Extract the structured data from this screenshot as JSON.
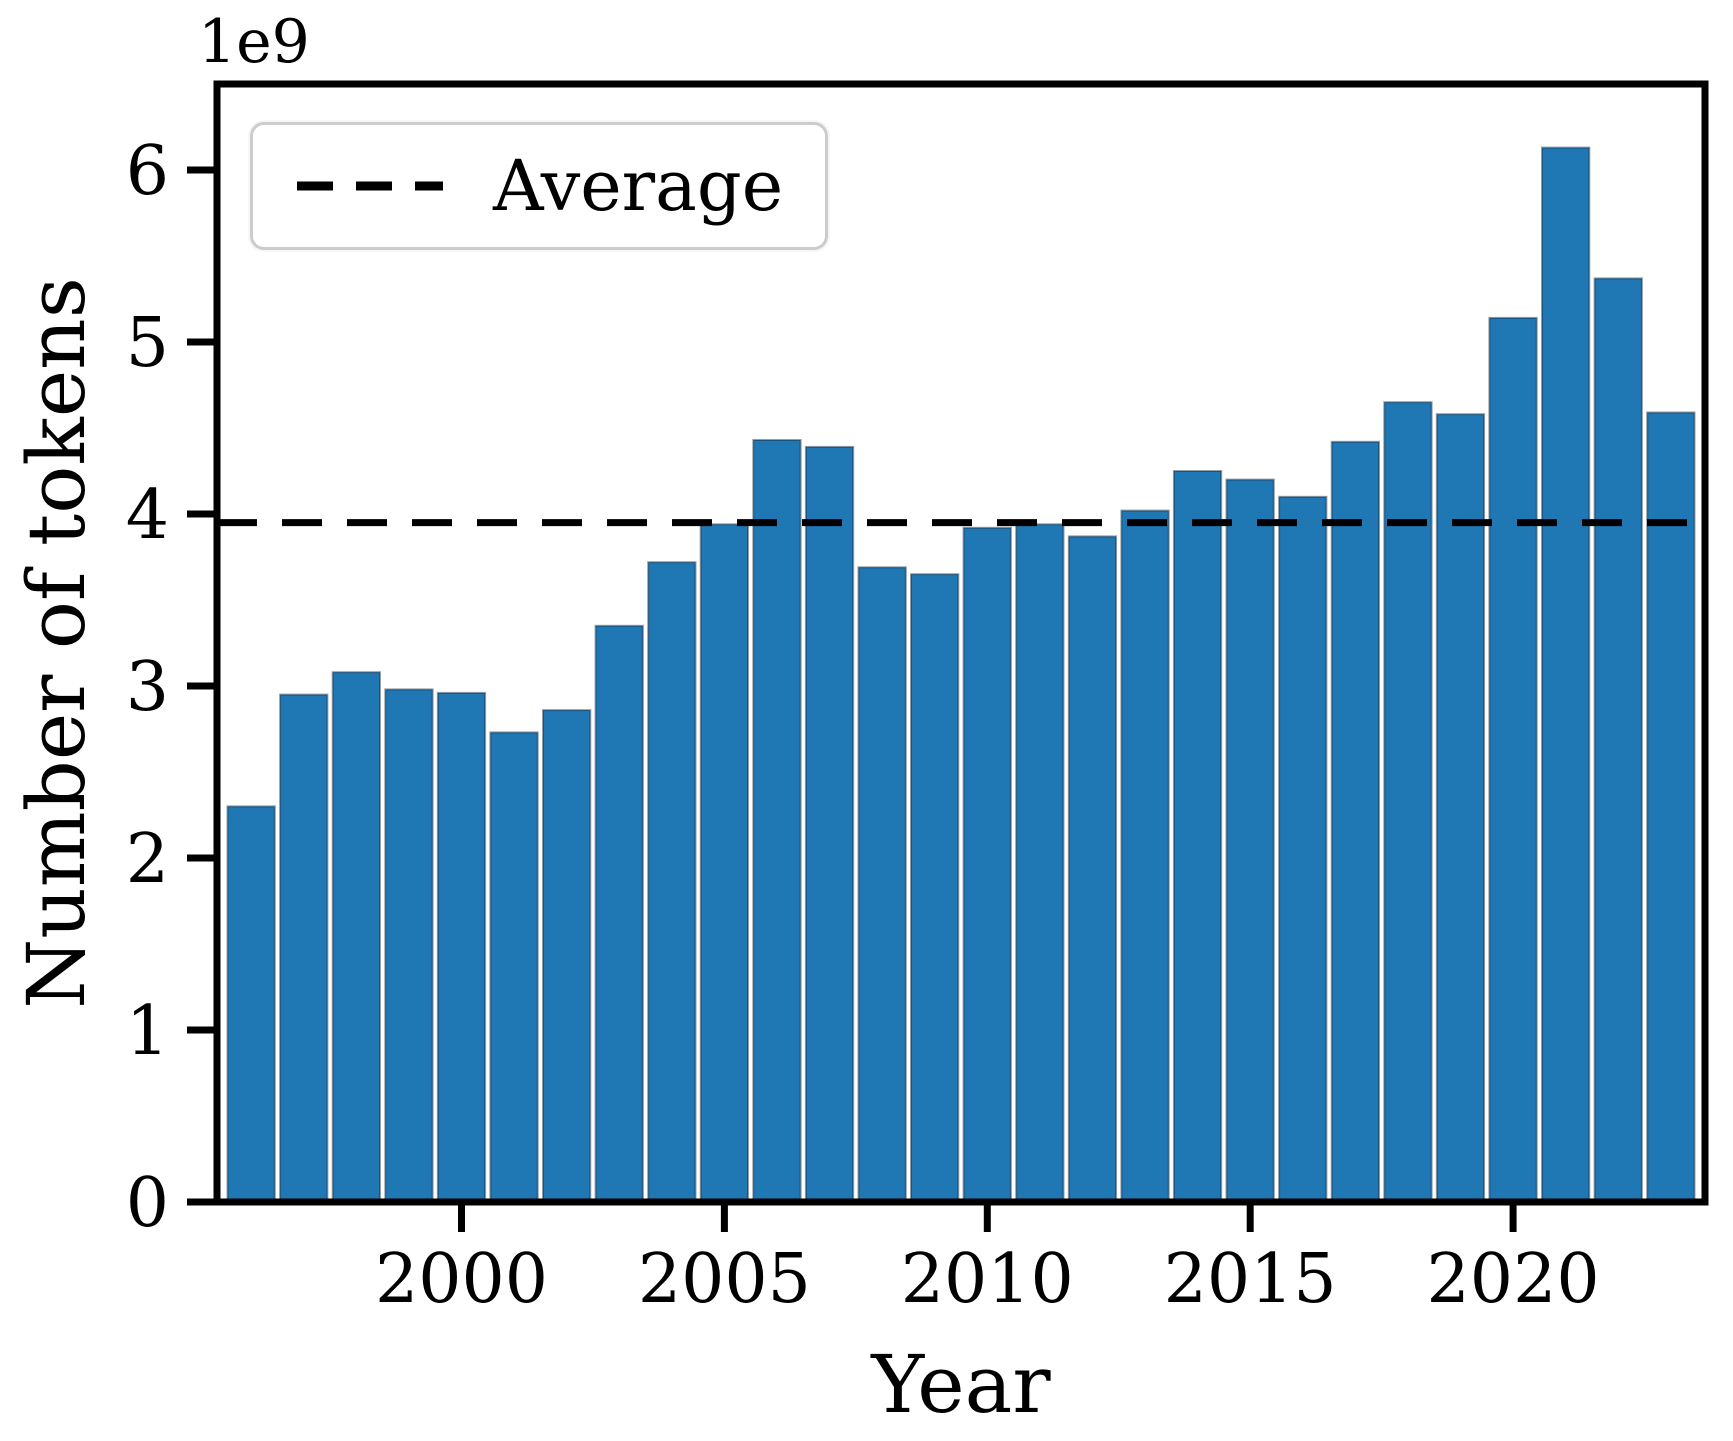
{
  "figure": {
    "offset_label": "1e9",
    "xlabel": "Year",
    "ylabel": "Number of tokens",
    "background_color": "#ffffff",
    "axis_color": "#000000",
    "legend": {
      "label": "Average",
      "line_color": "#000000",
      "line_style": "dashed"
    }
  },
  "chart_data": {
    "type": "bar",
    "title": "",
    "xlabel": "Year",
    "ylabel": "Number of tokens",
    "y_offset_multiplier": "1e9",
    "bar_color": "#1f77b4",
    "grid": false,
    "legend_position": "upper left",
    "legend_entries": [
      {
        "label": "Average",
        "style": "dashed black horizontal line"
      }
    ],
    "average_line_value": 3.95,
    "xlim": [
      1995.35,
      2023.65
    ],
    "ylim": [
      0,
      6.5
    ],
    "x_ticks": [
      2000,
      2005,
      2010,
      2015,
      2020
    ],
    "y_ticks": [
      0,
      1,
      2,
      3,
      4,
      5,
      6
    ],
    "bar_width_years": 0.9,
    "categories": [
      1996,
      1997,
      1998,
      1999,
      2000,
      2001,
      2002,
      2003,
      2004,
      2005,
      2006,
      2007,
      2008,
      2009,
      2010,
      2011,
      2012,
      2013,
      2014,
      2015,
      2016,
      2017,
      2018,
      2019,
      2020,
      2021,
      2022,
      2023
    ],
    "values": [
      2.3,
      2.95,
      3.08,
      2.98,
      2.96,
      2.73,
      2.86,
      3.35,
      3.72,
      3.94,
      4.43,
      4.39,
      3.69,
      3.65,
      3.92,
      3.94,
      3.87,
      4.02,
      4.25,
      4.2,
      4.1,
      4.42,
      4.65,
      4.58,
      5.14,
      6.13,
      5.37,
      4.59
    ],
    "values_unit": "1e9 tokens"
  }
}
